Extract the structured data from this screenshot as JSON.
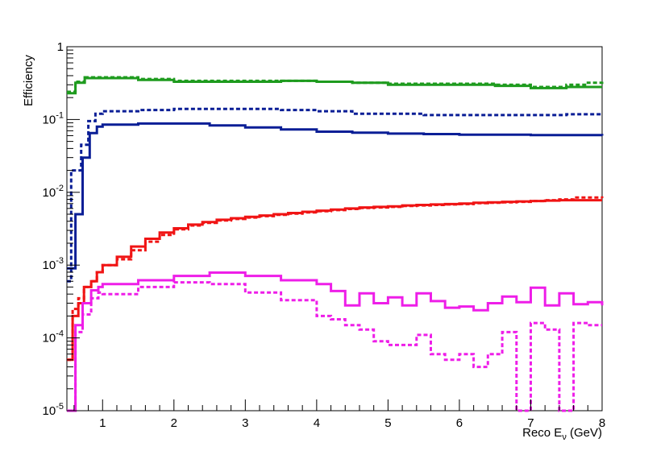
{
  "chart_data": {
    "type": "line",
    "style": "step-histogram",
    "xlabel_prefix": "Reco E",
    "xlabel_sub": "ν",
    "xlabel_suffix": " (GeV)",
    "ylabel": "Efficiency",
    "xlim": [
      0.5,
      8
    ],
    "ylim": [
      1e-05,
      1
    ],
    "yscale": "log",
    "grid": false,
    "legend": "none",
    "x_tick_labels": [
      "1",
      "2",
      "3",
      "4",
      "5",
      "6",
      "7",
      "8"
    ],
    "y_tick_labels": [
      {
        "base": "1",
        "exp": ""
      },
      {
        "base": "10",
        "exp": "-1"
      },
      {
        "base": "10",
        "exp": "-2"
      },
      {
        "base": "10",
        "exp": "-3"
      },
      {
        "base": "10",
        "exp": "-4"
      },
      {
        "base": "10",
        "exp": "-5"
      }
    ],
    "series": [
      {
        "color": "#1e9b1e",
        "dashed": false,
        "points": [
          [
            0.5,
            0.23
          ],
          [
            0.62,
            0.32
          ],
          [
            0.75,
            0.37
          ],
          [
            1.0,
            0.37
          ],
          [
            1.5,
            0.35
          ],
          [
            2.0,
            0.33
          ],
          [
            2.5,
            0.33
          ],
          [
            3.0,
            0.33
          ],
          [
            3.5,
            0.34
          ],
          [
            4.0,
            0.33
          ],
          [
            4.5,
            0.32
          ],
          [
            5.0,
            0.3
          ],
          [
            5.5,
            0.3
          ],
          [
            6.0,
            0.3
          ],
          [
            6.5,
            0.29
          ],
          [
            7.0,
            0.27
          ],
          [
            7.5,
            0.28
          ],
          [
            8.0,
            0.28
          ]
        ]
      },
      {
        "color": "#1e9b1e",
        "dashed": true,
        "points": [
          [
            0.5,
            0.24
          ],
          [
            0.62,
            0.33
          ],
          [
            0.75,
            0.38
          ],
          [
            1.0,
            0.38
          ],
          [
            1.5,
            0.36
          ],
          [
            2.0,
            0.34
          ],
          [
            2.5,
            0.34
          ],
          [
            3.0,
            0.34
          ],
          [
            3.5,
            0.34
          ],
          [
            4.0,
            0.33
          ],
          [
            4.5,
            0.32
          ],
          [
            5.0,
            0.31
          ],
          [
            5.5,
            0.31
          ],
          [
            6.0,
            0.31
          ],
          [
            6.5,
            0.3
          ],
          [
            7.0,
            0.28
          ],
          [
            7.5,
            0.3
          ],
          [
            7.8,
            0.32
          ],
          [
            8.0,
            0.33
          ]
        ]
      },
      {
        "color": "#0a1e96",
        "dashed": false,
        "points": [
          [
            0.5,
            0.0009
          ],
          [
            0.62,
            0.005
          ],
          [
            0.72,
            0.03
          ],
          [
            0.82,
            0.065
          ],
          [
            0.92,
            0.08
          ],
          [
            1.0,
            0.085
          ],
          [
            1.5,
            0.088
          ],
          [
            2.0,
            0.088
          ],
          [
            2.5,
            0.083
          ],
          [
            3.0,
            0.078
          ],
          [
            3.5,
            0.073
          ],
          [
            4.0,
            0.068
          ],
          [
            4.5,
            0.066
          ],
          [
            5.0,
            0.064
          ],
          [
            5.5,
            0.063
          ],
          [
            6.0,
            0.062
          ],
          [
            6.5,
            0.062
          ],
          [
            7.0,
            0.061
          ],
          [
            7.5,
            0.061
          ],
          [
            8.0,
            0.06
          ]
        ]
      },
      {
        "color": "#0a1e96",
        "dashed": true,
        "points": [
          [
            0.5,
            0.0006
          ],
          [
            0.56,
            0.02
          ],
          [
            0.62,
            0.02
          ],
          [
            0.7,
            0.045
          ],
          [
            0.8,
            0.095
          ],
          [
            0.9,
            0.12
          ],
          [
            1.0,
            0.13
          ],
          [
            1.5,
            0.135
          ],
          [
            2.0,
            0.14
          ],
          [
            2.5,
            0.14
          ],
          [
            3.0,
            0.14
          ],
          [
            3.5,
            0.135
          ],
          [
            4.0,
            0.13
          ],
          [
            4.5,
            0.12
          ],
          [
            5.0,
            0.12
          ],
          [
            5.5,
            0.115
          ],
          [
            6.0,
            0.115
          ],
          [
            6.5,
            0.115
          ],
          [
            7.0,
            0.115
          ],
          [
            7.5,
            0.118
          ],
          [
            8.0,
            0.12
          ]
        ]
      },
      {
        "color": "#f01414",
        "dashed": false,
        "points": [
          [
            0.5,
            5e-05
          ],
          [
            0.58,
            0.0002
          ],
          [
            0.66,
            0.0003
          ],
          [
            0.74,
            0.0005
          ],
          [
            0.84,
            0.0006
          ],
          [
            0.92,
            0.0008
          ],
          [
            1.0,
            0.001
          ],
          [
            1.2,
            0.0013
          ],
          [
            1.4,
            0.0018
          ],
          [
            1.6,
            0.0023
          ],
          [
            1.8,
            0.0028
          ],
          [
            2.0,
            0.0032
          ],
          [
            2.2,
            0.0036
          ],
          [
            2.4,
            0.0039
          ],
          [
            2.6,
            0.0042
          ],
          [
            2.8,
            0.0044
          ],
          [
            3.0,
            0.0046
          ],
          [
            3.2,
            0.0048
          ],
          [
            3.4,
            0.005
          ],
          [
            3.6,
            0.0052
          ],
          [
            3.8,
            0.0054
          ],
          [
            4.0,
            0.0056
          ],
          [
            4.2,
            0.0058
          ],
          [
            4.4,
            0.006
          ],
          [
            4.6,
            0.0062
          ],
          [
            4.8,
            0.0063
          ],
          [
            5.0,
            0.0064
          ],
          [
            5.2,
            0.0066
          ],
          [
            5.4,
            0.0067
          ],
          [
            5.6,
            0.0068
          ],
          [
            5.8,
            0.0069
          ],
          [
            6.0,
            0.007
          ],
          [
            6.2,
            0.0072
          ],
          [
            6.4,
            0.0073
          ],
          [
            6.6,
            0.0074
          ],
          [
            6.8,
            0.0075
          ],
          [
            7.0,
            0.0076
          ],
          [
            7.2,
            0.0077
          ],
          [
            7.4,
            0.0078
          ],
          [
            7.6,
            0.0078
          ],
          [
            7.8,
            0.0078
          ],
          [
            8.0,
            0.0078
          ]
        ]
      },
      {
        "color": "#f01414",
        "dashed": true,
        "points": [
          [
            0.5,
            5e-05
          ],
          [
            0.58,
            0.00025
          ],
          [
            0.66,
            0.00035
          ],
          [
            0.74,
            0.0005
          ],
          [
            0.84,
            0.0006
          ],
          [
            0.92,
            0.0008
          ],
          [
            1.0,
            0.001
          ],
          [
            1.2,
            0.0012
          ],
          [
            1.4,
            0.0016
          ],
          [
            1.6,
            0.0021
          ],
          [
            1.8,
            0.0026
          ],
          [
            2.0,
            0.0031
          ],
          [
            2.2,
            0.0035
          ],
          [
            2.4,
            0.0038
          ],
          [
            2.6,
            0.0041
          ],
          [
            2.8,
            0.0043
          ],
          [
            3.0,
            0.0045
          ],
          [
            3.2,
            0.0047
          ],
          [
            3.4,
            0.0049
          ],
          [
            3.6,
            0.0051
          ],
          [
            3.8,
            0.0053
          ],
          [
            4.0,
            0.0055
          ],
          [
            4.2,
            0.0057
          ],
          [
            4.4,
            0.0059
          ],
          [
            4.6,
            0.0061
          ],
          [
            4.8,
            0.0062
          ],
          [
            5.0,
            0.0063
          ],
          [
            5.2,
            0.0065
          ],
          [
            5.4,
            0.0066
          ],
          [
            5.6,
            0.0067
          ],
          [
            5.8,
            0.0068
          ],
          [
            6.0,
            0.0069
          ],
          [
            6.2,
            0.0071
          ],
          [
            6.4,
            0.0072
          ],
          [
            6.6,
            0.0073
          ],
          [
            6.8,
            0.0074
          ],
          [
            7.0,
            0.0076
          ],
          [
            7.2,
            0.0078
          ],
          [
            7.4,
            0.008
          ],
          [
            7.6,
            0.0085
          ],
          [
            7.8,
            0.0085
          ],
          [
            8.0,
            0.0083
          ]
        ]
      },
      {
        "color": "#ee1ee8",
        "dashed": false,
        "points": [
          [
            0.5,
            1e-05
          ],
          [
            0.62,
            0.00015
          ],
          [
            0.72,
            0.0003
          ],
          [
            0.84,
            0.00045
          ],
          [
            0.94,
            0.0005
          ],
          [
            1.0,
            0.00055
          ],
          [
            1.5,
            0.00062
          ],
          [
            2.0,
            0.00071
          ],
          [
            2.5,
            0.00079
          ],
          [
            3.0,
            0.00071
          ],
          [
            3.5,
            0.00062
          ],
          [
            4.0,
            0.00055
          ],
          [
            4.2,
            0.00044
          ],
          [
            4.4,
            0.00028
          ],
          [
            4.6,
            0.00041
          ],
          [
            4.8,
            0.0003
          ],
          [
            5.0,
            0.00036
          ],
          [
            5.2,
            0.00028
          ],
          [
            5.4,
            0.00041
          ],
          [
            5.6,
            0.00032
          ],
          [
            5.8,
            0.00026
          ],
          [
            6.0,
            0.00027
          ],
          [
            6.2,
            0.00024
          ],
          [
            6.4,
            0.0003
          ],
          [
            6.6,
            0.00037
          ],
          [
            6.8,
            0.00031
          ],
          [
            7.0,
            0.00049
          ],
          [
            7.2,
            0.00028
          ],
          [
            7.4,
            0.00041
          ],
          [
            7.6,
            0.00029
          ],
          [
            7.8,
            0.00031
          ],
          [
            8.0,
            0.00028
          ]
        ]
      },
      {
        "color": "#ee1ee8",
        "dashed": true,
        "points": [
          [
            0.5,
            1e-05
          ],
          [
            0.62,
            0.00012
          ],
          [
            0.72,
            0.00021
          ],
          [
            0.84,
            0.00035
          ],
          [
            0.94,
            0.00042
          ],
          [
            1.0,
            0.0004
          ],
          [
            1.5,
            0.0005
          ],
          [
            2.0,
            0.00058
          ],
          [
            2.5,
            0.00055
          ],
          [
            3.0,
            0.00042
          ],
          [
            3.5,
            0.00033
          ],
          [
            4.0,
            0.0002
          ],
          [
            4.2,
            0.00018
          ],
          [
            4.4,
            0.00015
          ],
          [
            4.6,
            0.00013
          ],
          [
            4.8,
            9e-05
          ],
          [
            5.0,
            8e-05
          ],
          [
            5.2,
            8e-05
          ],
          [
            5.4,
            0.00011
          ],
          [
            5.6,
            6e-05
          ],
          [
            5.8,
            5e-05
          ],
          [
            6.0,
            6e-05
          ],
          [
            6.2,
            4e-05
          ],
          [
            6.4,
            6e-05
          ],
          [
            6.6,
            0.00012
          ],
          [
            6.8,
            1e-05
          ],
          [
            7.0,
            0.00016
          ],
          [
            7.2,
            0.00013
          ],
          [
            7.4,
            1e-05
          ],
          [
            7.6,
            0.00016
          ],
          [
            7.8,
            0.00015
          ],
          [
            8.0,
            0.00015
          ]
        ]
      }
    ]
  }
}
